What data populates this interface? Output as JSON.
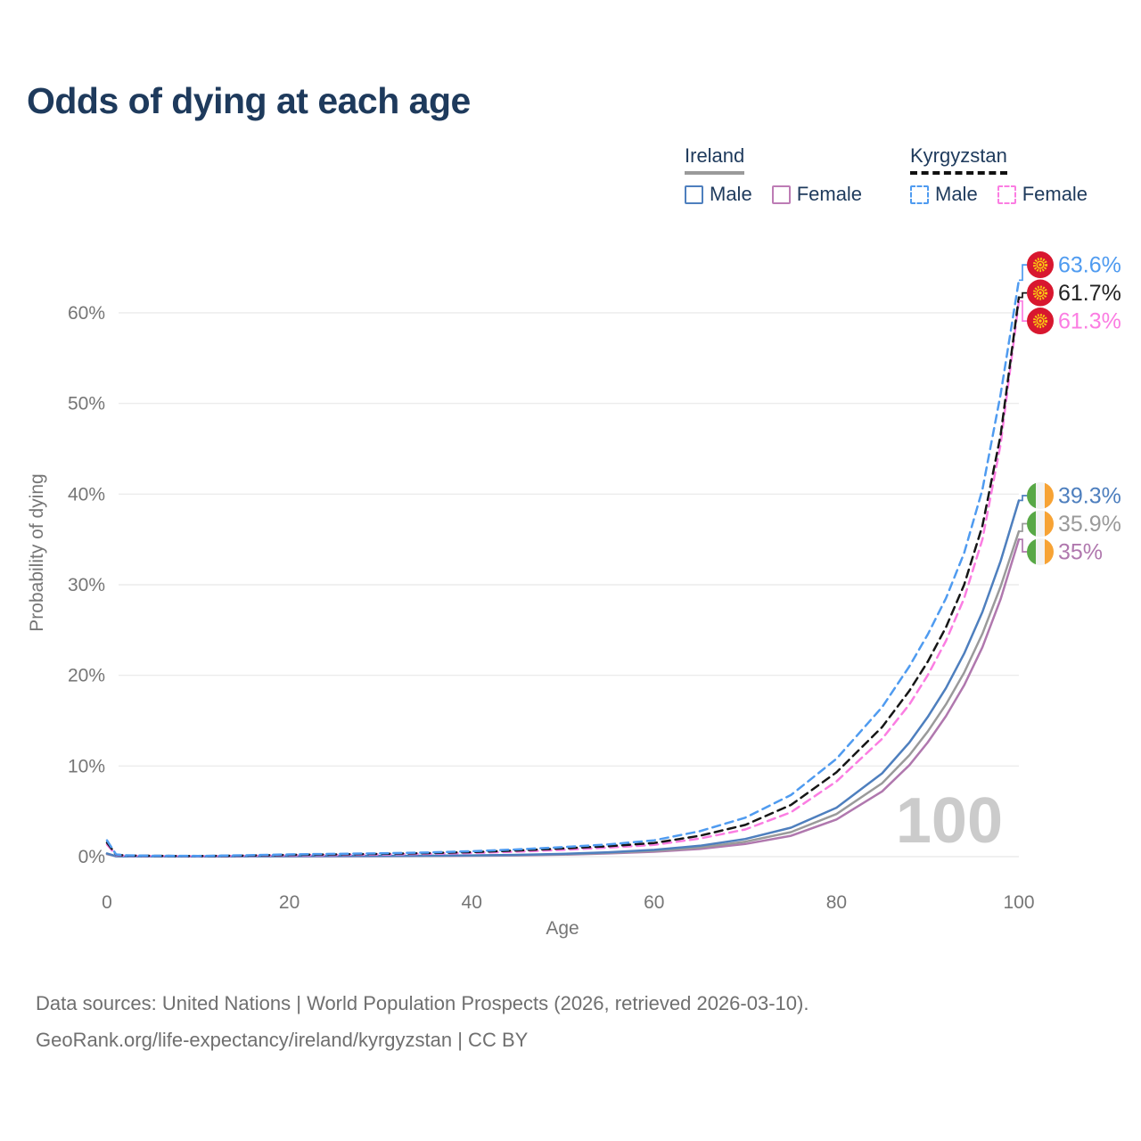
{
  "title": "Odds of dying at each age",
  "legend": {
    "groups": [
      {
        "label": "Ireland",
        "underline_style": "solid",
        "underline_color": "#9a9a9a",
        "items": [
          {
            "label": "Male",
            "color": "#4e7fbe",
            "dashed": false
          },
          {
            "label": "Female",
            "color": "#bd7cb5",
            "dashed": false
          }
        ]
      },
      {
        "label": "Kyrgyzstan",
        "underline_style": "dashed",
        "underline_color": "#111111",
        "items": [
          {
            "label": "Male",
            "color": "#4f9bf0",
            "dashed": true
          },
          {
            "label": "Female",
            "color": "#fb7de2",
            "dashed": true
          }
        ]
      }
    ]
  },
  "chart_data": {
    "type": "line",
    "title": "Odds of dying at each age",
    "xlabel": "Age",
    "ylabel": "Probability of dying",
    "xlim": [
      0,
      100
    ],
    "ylim": [
      0,
      66
    ],
    "grid": "horizontal",
    "x_ticks": [
      0,
      20,
      40,
      60,
      80,
      100
    ],
    "y_ticks": [
      {
        "value": 0,
        "label": "0%"
      },
      {
        "value": 10,
        "label": "10%"
      },
      {
        "value": 20,
        "label": "20%"
      },
      {
        "value": 30,
        "label": "30%"
      },
      {
        "value": 40,
        "label": "40%"
      },
      {
        "value": 50,
        "label": "50%"
      },
      {
        "value": 60,
        "label": "60%"
      }
    ],
    "ages": [
      0,
      1,
      2,
      5,
      10,
      15,
      20,
      25,
      30,
      35,
      40,
      45,
      50,
      55,
      60,
      65,
      70,
      75,
      80,
      85,
      88,
      90,
      92,
      94,
      96,
      98,
      100
    ],
    "series": [
      {
        "id": "ireland-female",
        "name": "Ireland Female",
        "country": "Ireland",
        "sex": "Female",
        "color": "#b078ae",
        "label_color": "#b078ae",
        "dashed": false,
        "flag": "ireland",
        "end_label": "35%",
        "values": [
          0.28,
          0.04,
          0.02,
          0.02,
          0.01,
          0.02,
          0.03,
          0.04,
          0.05,
          0.07,
          0.1,
          0.14,
          0.22,
          0.35,
          0.54,
          0.85,
          1.4,
          2.3,
          4.1,
          7.2,
          10.1,
          12.6,
          15.5,
          18.9,
          23.1,
          28.4,
          35.0
        ]
      },
      {
        "id": "ireland-both",
        "name": "Ireland Both sexes",
        "country": "Ireland",
        "sex": "Both",
        "color": "#9a9a9a",
        "label_color": "#9a9a9a",
        "dashed": false,
        "flag": "ireland",
        "end_label": "35.9%",
        "values": [
          0.3,
          0.04,
          0.03,
          0.02,
          0.02,
          0.03,
          0.05,
          0.06,
          0.07,
          0.09,
          0.12,
          0.17,
          0.26,
          0.41,
          0.64,
          1.0,
          1.65,
          2.7,
          4.7,
          8.1,
          11.2,
          13.8,
          16.8,
          20.3,
          24.6,
          29.8,
          35.9
        ]
      },
      {
        "id": "ireland-male",
        "name": "Ireland Male",
        "country": "Ireland",
        "sex": "Male",
        "color": "#4e7fbe",
        "label_color": "#4e7fbe",
        "dashed": false,
        "flag": "ireland",
        "end_label": "39.3%",
        "values": [
          0.35,
          0.05,
          0.03,
          0.02,
          0.02,
          0.04,
          0.06,
          0.07,
          0.08,
          0.1,
          0.14,
          0.2,
          0.3,
          0.48,
          0.75,
          1.2,
          1.95,
          3.2,
          5.4,
          9.2,
          12.6,
          15.4,
          18.6,
          22.4,
          27.0,
          32.6,
          39.3
        ]
      },
      {
        "id": "kyrgyzstan-female",
        "name": "Kyrgyzstan Female",
        "country": "Kyrgyzstan",
        "sex": "Female",
        "color": "#fb7de2",
        "label_color": "#fb7de2",
        "dashed": true,
        "flag": "kyrgyzstan",
        "end_label": "61.3%",
        "values": [
          1.35,
          0.18,
          0.11,
          0.08,
          0.06,
          0.1,
          0.15,
          0.19,
          0.24,
          0.3,
          0.4,
          0.55,
          0.75,
          1.0,
          1.3,
          2.0,
          3.0,
          4.9,
          8.3,
          13.0,
          16.8,
          20.0,
          23.8,
          28.5,
          35.0,
          45.5,
          61.3
        ]
      },
      {
        "id": "kyrgyzstan-both",
        "name": "Kyrgyzstan Both sexes",
        "country": "Kyrgyzstan",
        "sex": "Both",
        "color": "#161616",
        "label_color": "#222222",
        "dashed": true,
        "flag": "kyrgyzstan",
        "end_label": "61.7%",
        "values": [
          1.55,
          0.22,
          0.13,
          0.09,
          0.07,
          0.12,
          0.2,
          0.25,
          0.3,
          0.38,
          0.5,
          0.68,
          0.9,
          1.15,
          1.5,
          2.3,
          3.5,
          5.7,
          9.3,
          14.3,
          18.3,
          21.5,
          25.3,
          30.0,
          36.5,
          46.5,
          61.7
        ]
      },
      {
        "id": "kyrgyzstan-male",
        "name": "Kyrgyzstan Male",
        "country": "Kyrgyzstan",
        "sex": "Male",
        "color": "#4f9bf0",
        "label_color": "#4f9bf0",
        "dashed": true,
        "flag": "kyrgyzstan",
        "end_label": "63.6%",
        "values": [
          1.8,
          0.25,
          0.15,
          0.1,
          0.08,
          0.15,
          0.25,
          0.3,
          0.36,
          0.45,
          0.6,
          0.8,
          1.05,
          1.35,
          1.8,
          2.8,
          4.3,
          6.8,
          10.8,
          16.5,
          21.0,
          24.5,
          28.5,
          33.5,
          40.5,
          51.0,
          63.6
        ]
      }
    ]
  },
  "annotations": {
    "watermark": "100"
  },
  "colors": {
    "title_text": "#1e3a5c",
    "axis_text": "#767676",
    "gridline": "#ececec",
    "watermark": "#cbcbcb",
    "footer_text": "#6f6f6f",
    "ireland_flag": {
      "green": "#58a846",
      "white": "#f2f2f2",
      "orange": "#f7a335"
    },
    "kyrgyzstan_flag": {
      "red": "#d8172f",
      "yellow": "#f9c813"
    }
  },
  "footer": {
    "line1": "Data sources: United Nations | World Population Prospects (2026, retrieved 2026-03-10).",
    "line2": "GeoRank.org/life-expectancy/ireland/kyrgyzstan | CC BY"
  }
}
